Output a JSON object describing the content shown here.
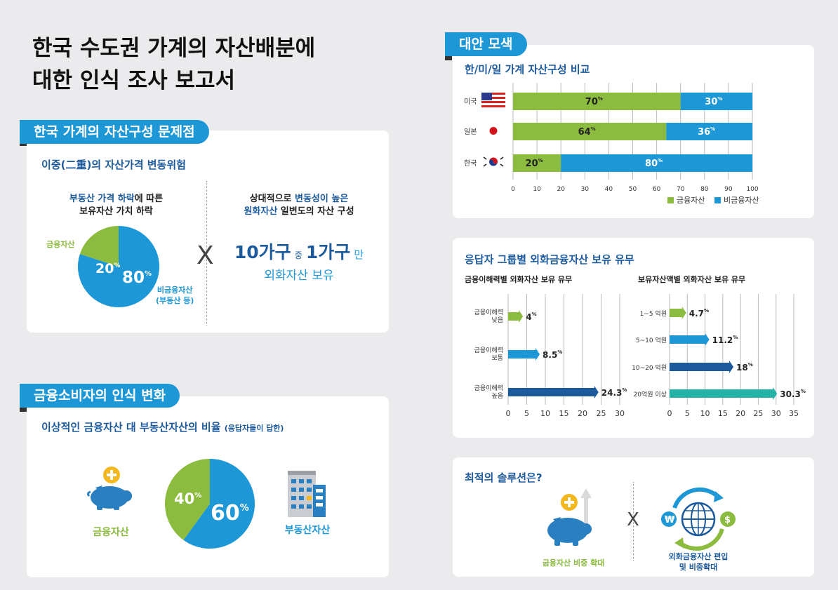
{
  "main_title_line1": "한국 수도권 가계의 자산배분에",
  "main_title_line2": "대한 인식 조사 보고서",
  "section1": {
    "tab": "한국 가계의 자산구성 문제점",
    "subtitle": "이중(二重)의 자산가격 변동위험",
    "left_head_1a": "부동산 가격 하락",
    "left_head_1b": "에 따른",
    "left_head_2": "보유자산 가치 하락",
    "pie_label_financial": "금융자산",
    "pie_label_nonfin_1": "비금융자산",
    "pie_label_nonfin_2": "(부동산 등)",
    "pie_pct_fin": "20",
    "pie_pct_nonfin": "80",
    "pct_sign": "%",
    "x_mark": "X",
    "right_head_1a": "상대적으로 ",
    "right_head_1b": "변동성이 높은",
    "right_head_2a": "원화자산",
    "right_head_2b": " 일변도의 자산 구성",
    "big_10": "10가구",
    "big_jung": "중",
    "big_1": "1가구",
    "big_man": "만",
    "big_line2": "외화자산 보유"
  },
  "section2": {
    "tab": "금융소비자의 인식 변화",
    "subtitle": "이상적인 금융자산 대 부동산자산의 비율",
    "subtitle_note": "(응답자들이 답한)",
    "label_fin": "금융자산",
    "label_re": "부동산자산",
    "pie_pct_fin": "40",
    "pie_pct_re": "60"
  },
  "section3": {
    "tab": "대안 모색",
    "subtitle": "한/미/일 가계 자산구성 비교",
    "legend_fin": "금융자산",
    "legend_nonfin": "비금융자산"
  },
  "section4": {
    "title": "응답자 그룹별 외화금융자산 보유 유무",
    "left_title": "금융이해력별 외화자산 보유 유무",
    "right_title": "보유자산액별 외화자산 보유 유무"
  },
  "section5": {
    "title": "최적의 솔루션은?",
    "label_left": "금융자산 비중 확대",
    "label_right_1": "외화금융자산 편입",
    "label_right_2": "및 비중확대",
    "x_mark": "X"
  },
  "chart_data": [
    {
      "type": "pie",
      "labels": [
        "금융자산",
        "비금융자산 (부동산 등)"
      ],
      "values": [
        20,
        80
      ],
      "colors": [
        "#8cbc3f",
        "#1d97d5"
      ]
    },
    {
      "type": "pie",
      "labels": [
        "금융자산",
        "부동산자산"
      ],
      "values": [
        40,
        60
      ],
      "colors": [
        "#8cbc3f",
        "#1d97d5"
      ]
    },
    {
      "type": "bar",
      "orientation": "horizontal",
      "stacked": true,
      "title": "한/미/일 가계 자산구성 비교",
      "categories": [
        "미국",
        "일본",
        "한국"
      ],
      "series": [
        {
          "name": "금융자산",
          "values": [
            70,
            64,
            20
          ],
          "color": "#8cbc3f"
        },
        {
          "name": "비금융자산",
          "values": [
            30,
            36,
            80
          ],
          "color": "#1d97d5"
        }
      ],
      "xlim": [
        0,
        100
      ],
      "xticks": [
        0,
        10,
        20,
        30,
        40,
        50,
        60,
        70,
        80,
        90,
        100
      ],
      "grid": true,
      "legend": "bottom-right"
    },
    {
      "type": "bar",
      "orientation": "horizontal",
      "title": "금융이해력별 외화자산 보유 유무",
      "categories": [
        [
          "금융이해력",
          "낮음"
        ],
        [
          "금융이해력",
          "보통"
        ],
        [
          "금융이해력",
          "높음"
        ]
      ],
      "values": [
        4,
        8.5,
        24.3
      ],
      "value_labels": [
        "4",
        "8.5",
        "24.3"
      ],
      "colors": [
        "#8cbc3f",
        "#1d97d5",
        "#1c5a9c"
      ],
      "xlim": [
        0,
        30
      ],
      "xticks": [
        0,
        5,
        10,
        15,
        20,
        25,
        30
      ],
      "grid": true
    },
    {
      "type": "bar",
      "orientation": "horizontal",
      "title": "보유자산액별 외화자산 보유 유무",
      "categories": [
        "1~5 억원",
        "5~10 억원",
        "10~20 억원",
        "20억원 이상"
      ],
      "values": [
        4.7,
        11.2,
        18,
        30.3
      ],
      "value_labels": [
        "4.7",
        "11.2",
        "18",
        "30.3"
      ],
      "colors": [
        "#8cbc3f",
        "#1d97d5",
        "#1c5a9c",
        "#25b3a8"
      ],
      "xlim": [
        0,
        35
      ],
      "xticks": [
        0,
        5,
        10,
        15,
        20,
        25,
        30,
        35
      ],
      "grid": true
    }
  ]
}
